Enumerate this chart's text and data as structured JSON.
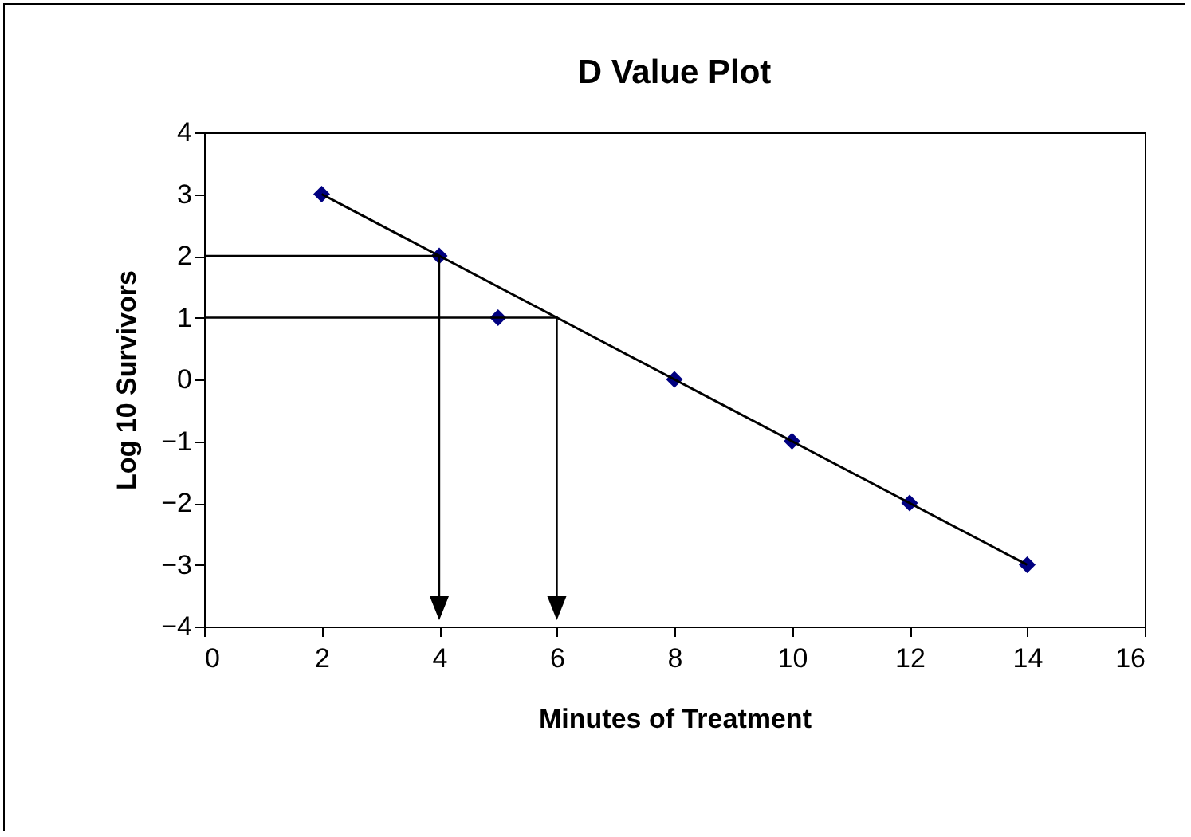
{
  "chart_data": {
    "type": "scatter",
    "title": "D Value Plot",
    "xlabel": "Minutes of Treatment",
    "ylabel": "Log 10 Survivors",
    "series": [
      {
        "type": "scatter",
        "color": "#000080",
        "marker": "diamond",
        "x": [
          2,
          4,
          5,
          8,
          10,
          12,
          14
        ],
        "values": [
          3,
          2,
          1,
          0,
          -1,
          -2,
          -3
        ]
      },
      {
        "type": "line",
        "color": "#000000",
        "marker": "none",
        "x": [
          2,
          14
        ],
        "values": [
          3,
          -3
        ]
      }
    ],
    "xlim": [
      0,
      16
    ],
    "xticks": [
      0,
      2,
      4,
      6,
      8,
      10,
      12,
      14,
      16
    ],
    "ylim": [
      -4,
      4
    ],
    "yticks": [
      -4,
      -3,
      -2,
      -1,
      0,
      1,
      2,
      3,
      4
    ],
    "ref_lines": [
      {
        "axis": "y",
        "value": 2,
        "color": "#000000"
      },
      {
        "axis": "y",
        "value": 1,
        "color": "#000000"
      }
    ],
    "grid": false,
    "line_style": "solid"
  }
}
